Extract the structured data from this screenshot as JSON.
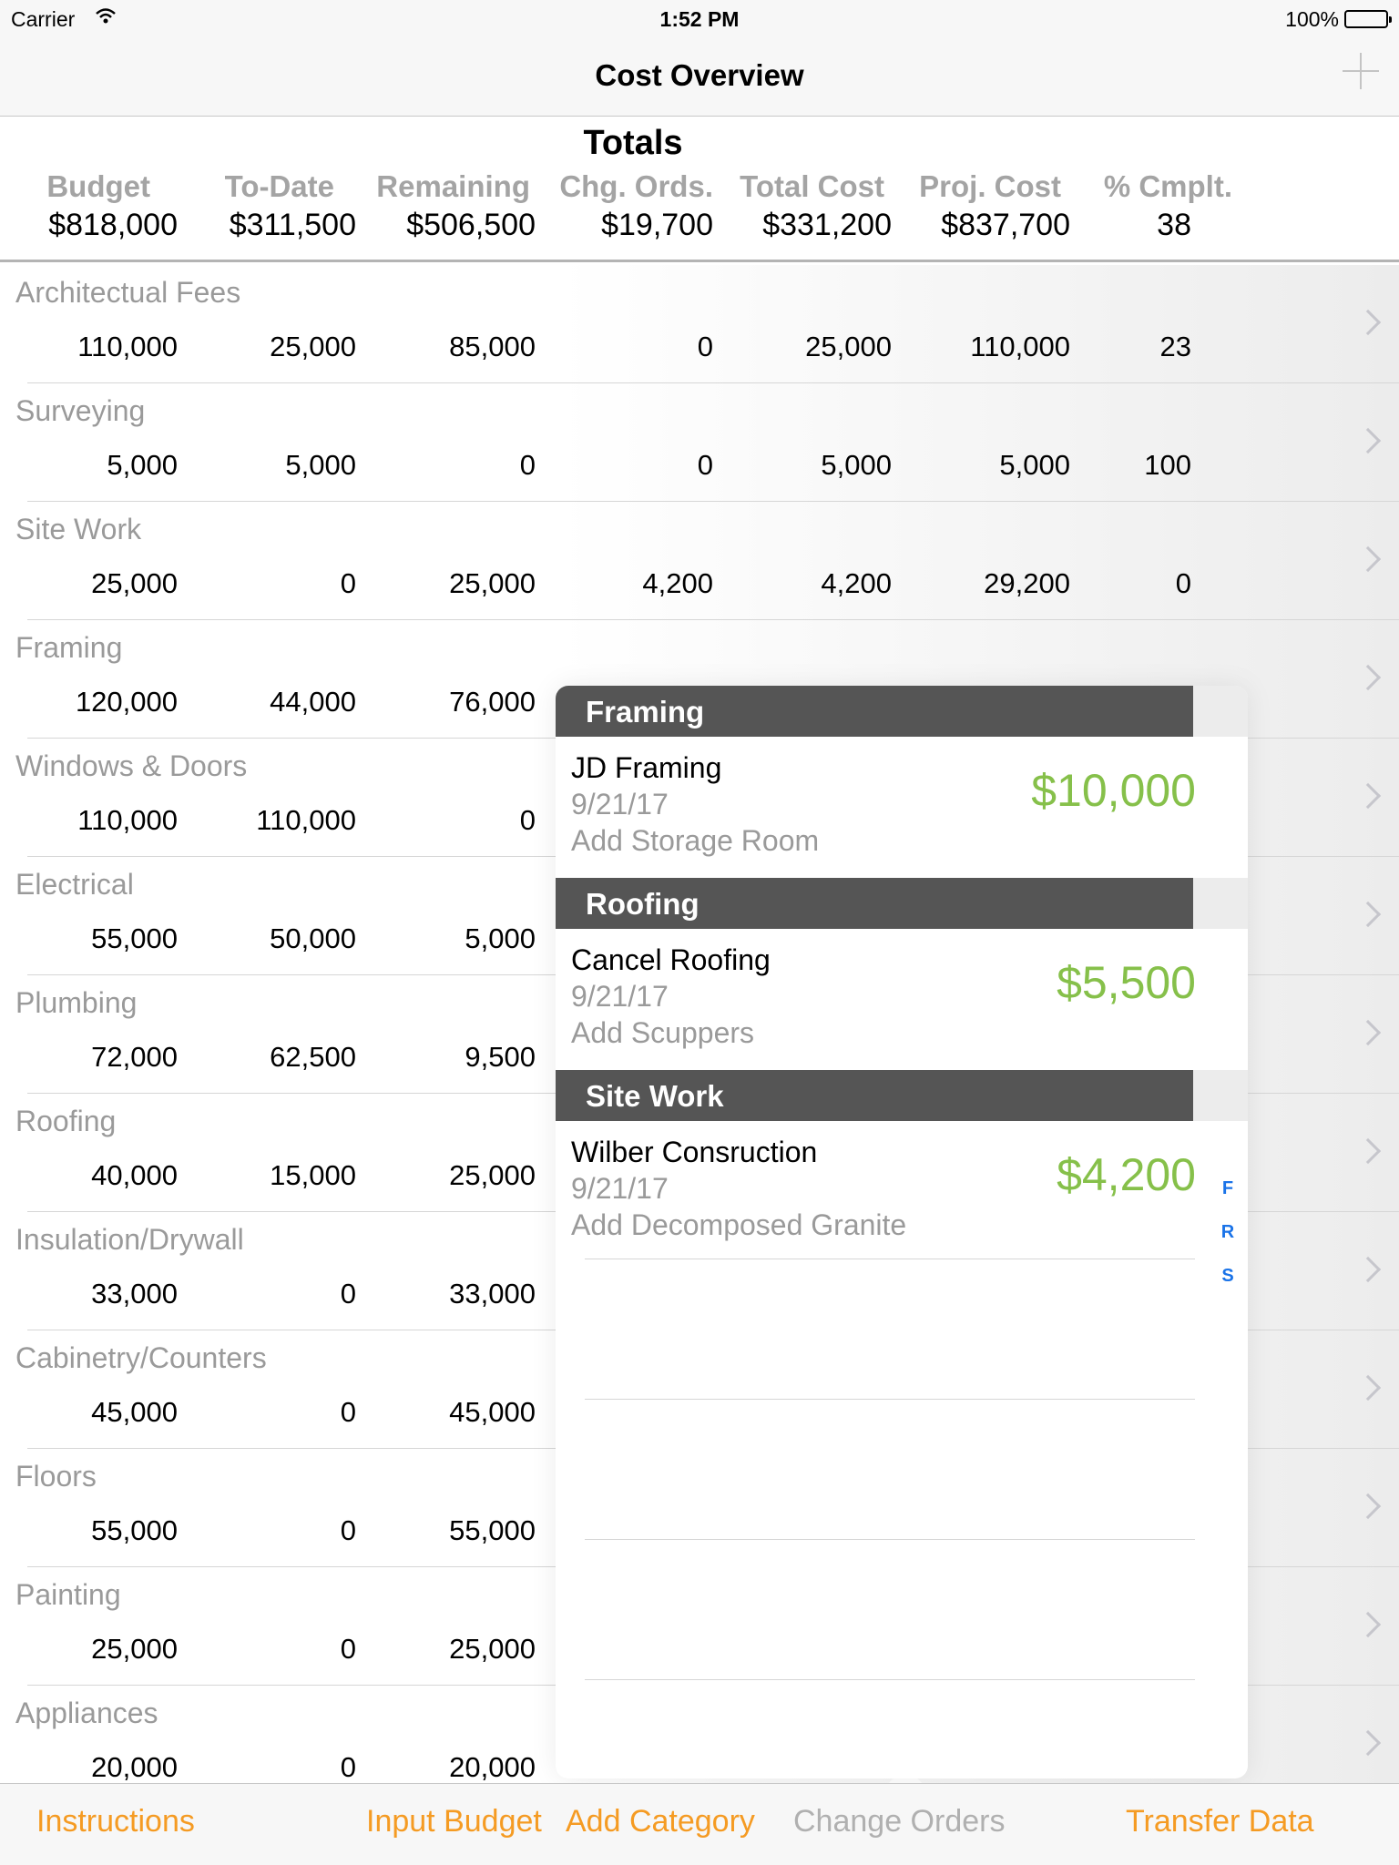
{
  "status_bar": {
    "carrier": "Carrier",
    "time": "1:52 PM",
    "battery": "100%"
  },
  "navbar": {
    "title": "Cost Overview"
  },
  "totals": {
    "heading": "Totals",
    "columns": [
      {
        "label": "Budget",
        "value": "$818,000"
      },
      {
        "label": "To-Date",
        "value": "$311,500"
      },
      {
        "label": "Remaining",
        "value": "$506,500"
      },
      {
        "label": "Chg. Ords.",
        "value": "$19,700"
      },
      {
        "label": "Total Cost",
        "value": "$331,200"
      },
      {
        "label": "Proj. Cost",
        "value": "$837,700"
      },
      {
        "label": "% Cmplt.",
        "value": "38"
      }
    ]
  },
  "categories": [
    {
      "name": "Architectual  Fees",
      "values": [
        "110,000",
        "25,000",
        "85,000",
        "0",
        "25,000",
        "110,000",
        "23"
      ]
    },
    {
      "name": "Surveying",
      "values": [
        "5,000",
        "5,000",
        "0",
        "0",
        "5,000",
        "5,000",
        "100"
      ]
    },
    {
      "name": "Site Work",
      "values": [
        "25,000",
        "0",
        "25,000",
        "4,200",
        "4,200",
        "29,200",
        "0"
      ]
    },
    {
      "name": "Framing",
      "values": [
        "120,000",
        "44,000",
        "76,000"
      ]
    },
    {
      "name": "Windows & Doors",
      "values": [
        "110,000",
        "110,000",
        "0"
      ]
    },
    {
      "name": "Electrical",
      "values": [
        "55,000",
        "50,000",
        "5,000"
      ]
    },
    {
      "name": "Plumbing",
      "values": [
        "72,000",
        "62,500",
        "9,500"
      ]
    },
    {
      "name": "Roofing",
      "values": [
        "40,000",
        "15,000",
        "25,000"
      ]
    },
    {
      "name": "Insulation/Drywall",
      "values": [
        "33,000",
        "0",
        "33,000"
      ]
    },
    {
      "name": "Cabinetry/Counters",
      "values": [
        "45,000",
        "0",
        "45,000"
      ]
    },
    {
      "name": "Floors",
      "values": [
        "55,000",
        "0",
        "55,000"
      ]
    },
    {
      "name": "Painting",
      "values": [
        "25,000",
        "0",
        "25,000"
      ]
    },
    {
      "name": "Appliances",
      "values": [
        "20,000",
        "0",
        "20,000"
      ]
    }
  ],
  "popover": {
    "sections": [
      {
        "header": "Framing",
        "item": {
          "title": "JD Framing",
          "date": "9/21/17",
          "description": "Add Storage Room",
          "amount": "$10,000"
        }
      },
      {
        "header": "Roofing",
        "item": {
          "title": "Cancel Roofing",
          "date": "9/21/17",
          "description": "Add Scuppers",
          "amount": "$5,500"
        }
      },
      {
        "header": "Site Work",
        "item": {
          "title": "Wilber Consruction",
          "date": "9/21/17",
          "description": "Add Decomposed Granite",
          "amount": "$4,200"
        }
      }
    ],
    "index": [
      "F",
      "R",
      "S"
    ]
  },
  "tabbar": {
    "tabs": [
      {
        "label": "Instructions",
        "active": false
      },
      {
        "label": "Input Budget",
        "active": false
      },
      {
        "label": "Add Category",
        "active": false
      },
      {
        "label": "Change Orders",
        "active": true
      },
      {
        "label": "Transfer Data",
        "active": false
      }
    ]
  },
  "colors": {
    "accent": "#f59b23",
    "amount_green": "#86c04a",
    "section_header": "#555555",
    "index_blue": "#1a73e8"
  }
}
